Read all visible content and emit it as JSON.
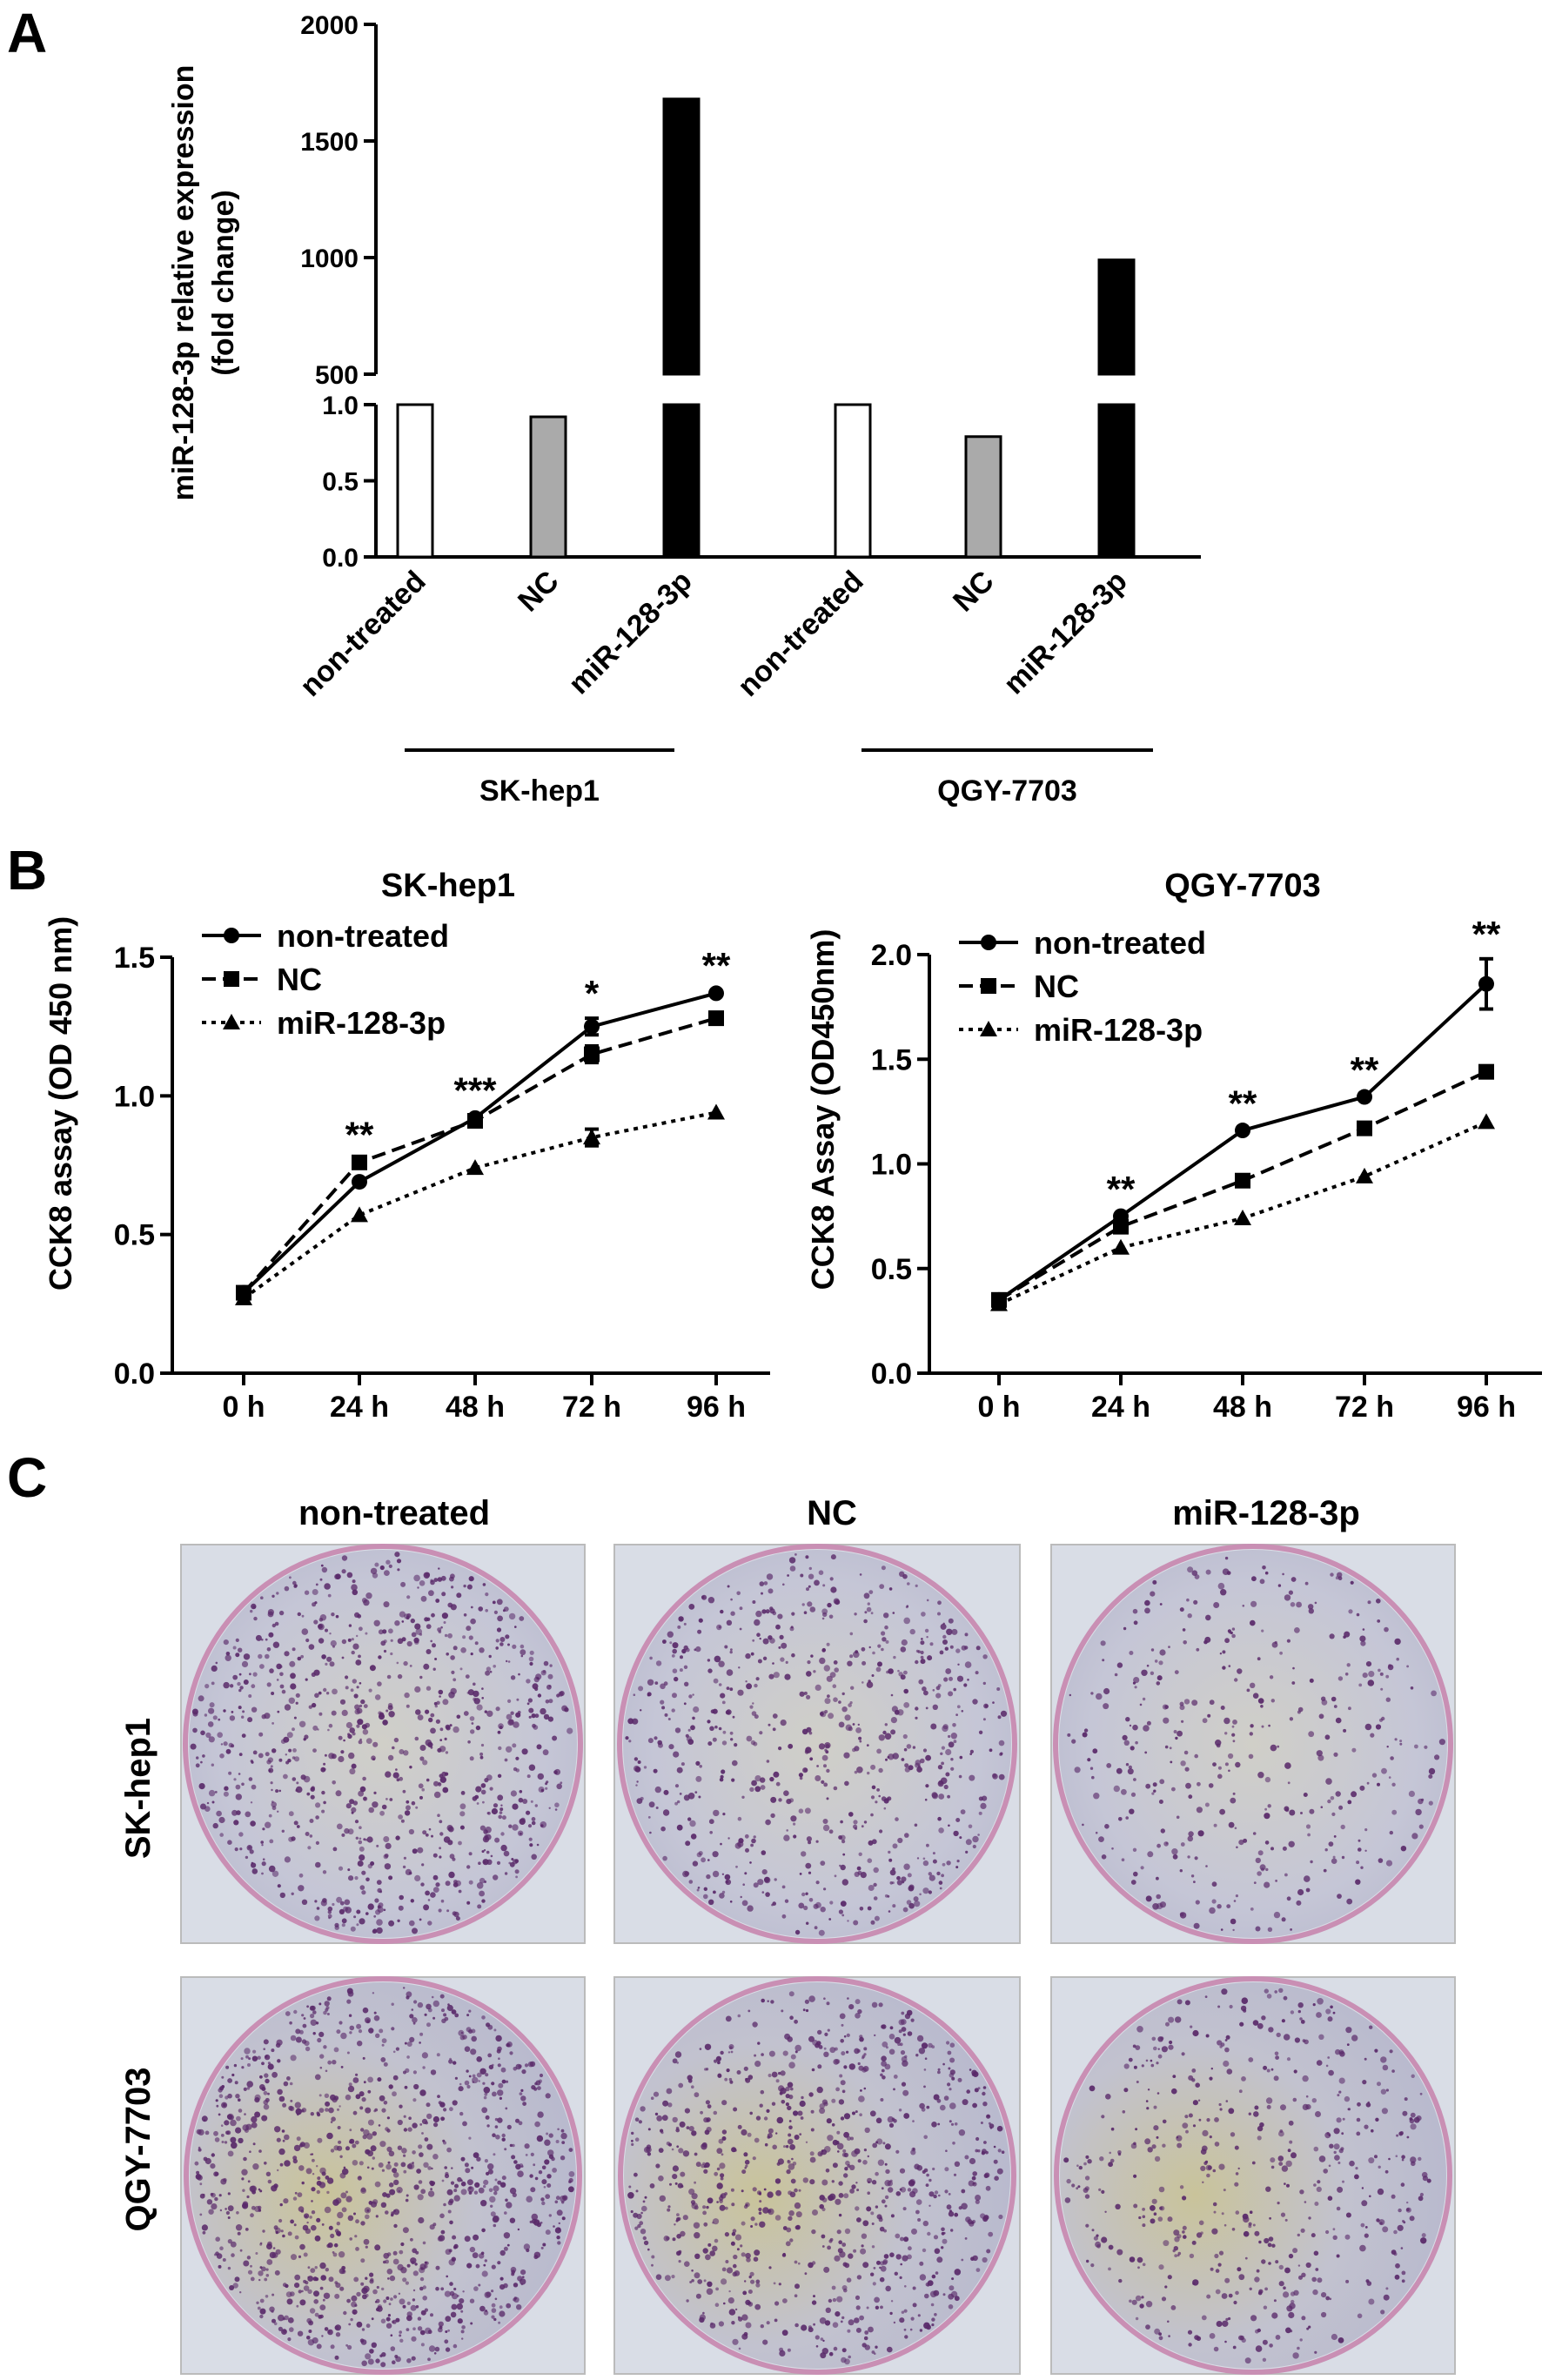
{
  "panel_labels": {
    "a": "A",
    "b": "B",
    "c": "C"
  },
  "chart_data": [
    {
      "type": "bar",
      "panel": "A",
      "ylabel_line1": "miR-128-3p relative expression",
      "ylabel_line2": "(fold change)",
      "axis_break": true,
      "y_lower_ticks": [
        "0.0",
        "0.5",
        "1.0"
      ],
      "y_upper_ticks": [
        "500",
        "1000",
        "1500",
        "2000"
      ],
      "categories": [
        "non-treated",
        "NC",
        "miR-128-3p",
        "non-treated",
        "NC",
        "miR-128-3p"
      ],
      "values": [
        1.0,
        0.92,
        1680,
        1.0,
        0.79,
        990
      ],
      "bar_colors": [
        "#ffffff",
        "#aaaaaa",
        "#000000",
        "#ffffff",
        "#aaaaaa",
        "#000000"
      ],
      "groups": [
        {
          "label": "SK-hep1",
          "categories": [
            0,
            1,
            2
          ]
        },
        {
          "label": "QGY-7703",
          "categories": [
            3,
            4,
            5
          ]
        }
      ]
    },
    {
      "type": "line",
      "panel": "B-left",
      "title": "SK-hep1",
      "ylabel": "CCK8 assay (OD 450 nm)",
      "x": [
        "0 h",
        "24 h",
        "48 h",
        "72 h",
        "96 h"
      ],
      "ylim": [
        0.0,
        1.5
      ],
      "y_ticks": [
        "0.0",
        "0.5",
        "1.0",
        "1.5"
      ],
      "series": [
        {
          "name": "non-treated",
          "marker": "circle",
          "dash": "solid",
          "values": [
            0.29,
            0.69,
            0.92,
            1.25,
            1.37
          ],
          "errors": [
            0.01,
            0.01,
            0.01,
            0.03,
            0.01
          ]
        },
        {
          "name": "NC",
          "marker": "square",
          "dash": "dashed",
          "values": [
            0.29,
            0.76,
            0.91,
            1.15,
            1.28
          ],
          "errors": [
            0.01,
            0.01,
            0.01,
            0.03,
            0.01
          ]
        },
        {
          "name": "miR-128-3p",
          "marker": "triangle",
          "dash": "dotted",
          "values": [
            0.27,
            0.57,
            0.74,
            0.85,
            0.94
          ],
          "errors": [
            0.01,
            0.01,
            0.01,
            0.03,
            0.01
          ]
        }
      ],
      "annotations": [
        "",
        "**",
        "***",
        "*",
        "**"
      ]
    },
    {
      "type": "line",
      "panel": "B-right",
      "title": "QGY-7703",
      "ylabel": "CCK8 Assay (OD450nm)",
      "x": [
        "0 h",
        "24 h",
        "48 h",
        "72 h",
        "96 h"
      ],
      "ylim": [
        0.0,
        2.0
      ],
      "y_ticks": [
        "0.0",
        "0.5",
        "1.0",
        "1.5",
        "2.0"
      ],
      "series": [
        {
          "name": "non-treated",
          "marker": "circle",
          "dash": "solid",
          "values": [
            0.35,
            0.75,
            1.16,
            1.32,
            1.86
          ],
          "errors": [
            0.02,
            0.01,
            0.01,
            0.01,
            0.12
          ]
        },
        {
          "name": "NC",
          "marker": "square",
          "dash": "dashed",
          "values": [
            0.35,
            0.7,
            0.92,
            1.17,
            1.44
          ],
          "errors": [
            0.02,
            0.01,
            0.01,
            0.01,
            0.01
          ]
        },
        {
          "name": "miR-128-3p",
          "marker": "triangle",
          "dash": "dotted",
          "values": [
            0.33,
            0.6,
            0.74,
            0.94,
            1.2
          ],
          "errors": [
            0.02,
            0.01,
            0.01,
            0.01,
            0.01
          ]
        }
      ],
      "annotations": [
        "",
        "**",
        "**",
        "**",
        "**"
      ]
    }
  ],
  "colony_panel": {
    "columns": [
      "non-treated",
      "NC",
      "miR-128-3p"
    ],
    "rows": [
      "SK-hep1",
      "QGY-7703"
    ],
    "densities": [
      [
        1.0,
        0.8,
        0.45
      ],
      [
        1.25,
        1.0,
        0.6
      ]
    ],
    "colony_color": "#5a2a6a",
    "plate_background": "#c5c6d6"
  }
}
